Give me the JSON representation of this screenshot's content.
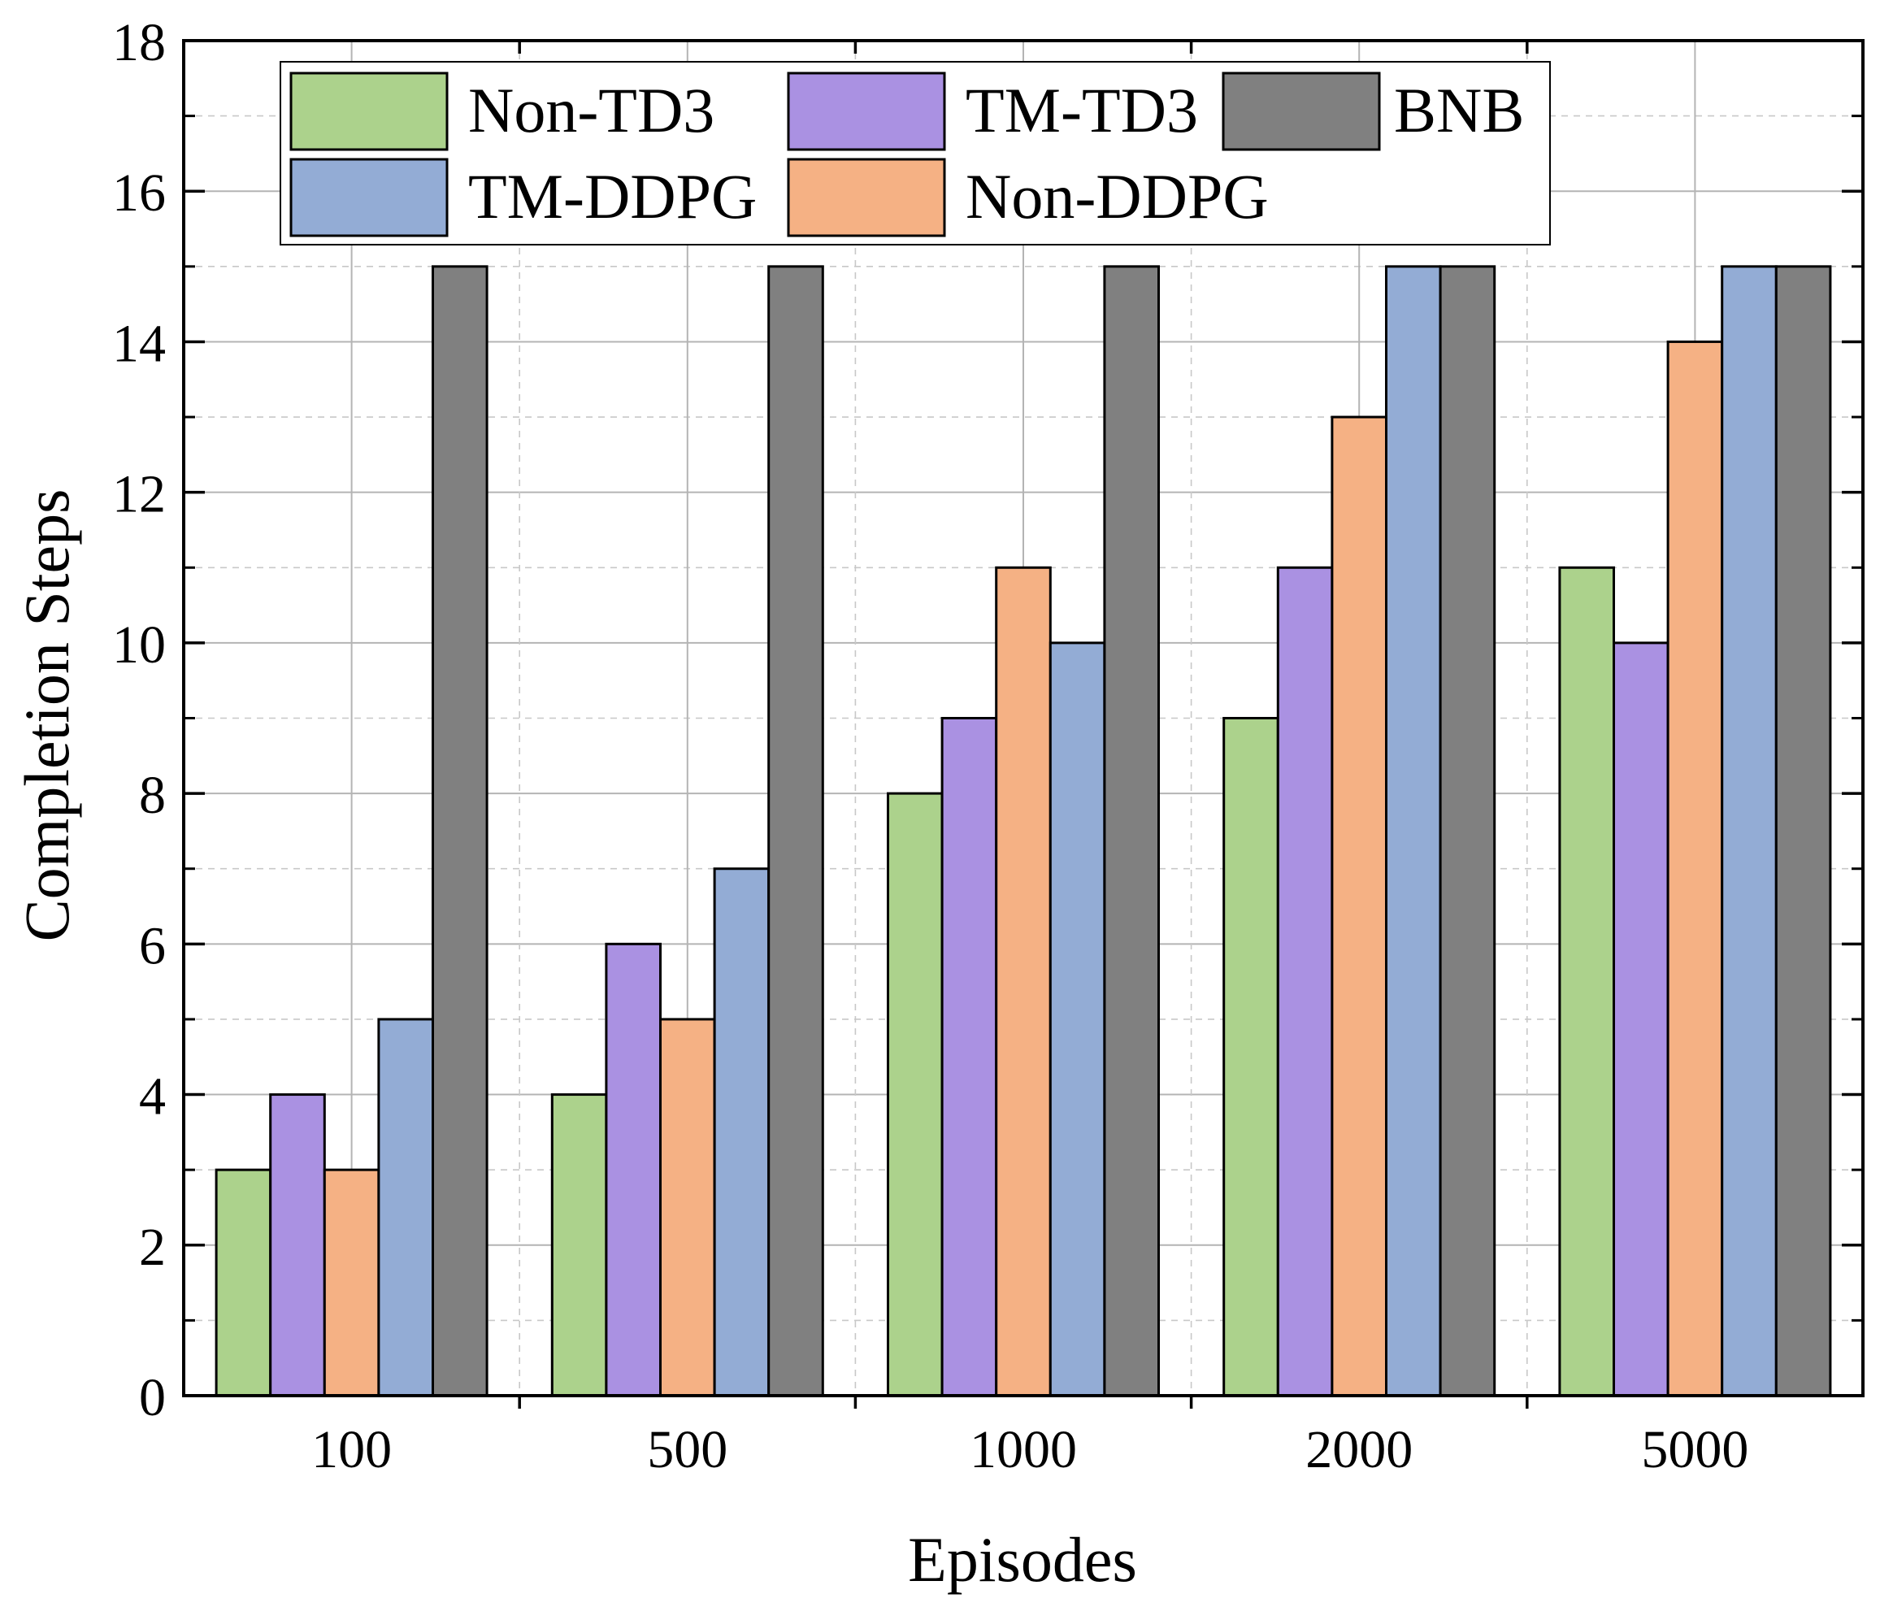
{
  "chart_data": {
    "type": "bar",
    "xlabel": "Episodes",
    "ylabel": "Completion Steps",
    "categories": [
      "100",
      "500",
      "1000",
      "2000",
      "5000"
    ],
    "ylim": [
      0,
      18
    ],
    "y_ticks": [
      "0",
      "2",
      "4",
      "6",
      "8",
      "10",
      "12",
      "14",
      "16",
      "18"
    ],
    "grid": true,
    "legend_position": "top",
    "series": [
      {
        "name": "Non-TD3",
        "color": "#acd28c",
        "values": [
          3,
          4,
          8,
          9,
          11
        ]
      },
      {
        "name": "TM-TD3",
        "color": "#aa91e2",
        "values": [
          4,
          6,
          9,
          11,
          10
        ]
      },
      {
        "name": "Non-DDPG",
        "color": "#f5b184",
        "values": [
          3,
          5,
          11,
          13,
          14
        ]
      },
      {
        "name": "TM-DDPG",
        "color": "#93acd5",
        "values": [
          5,
          7,
          10,
          15,
          15
        ]
      },
      {
        "name": "BNB",
        "color": "#808080",
        "values": [
          15,
          15,
          15,
          15,
          15
        ]
      }
    ]
  }
}
